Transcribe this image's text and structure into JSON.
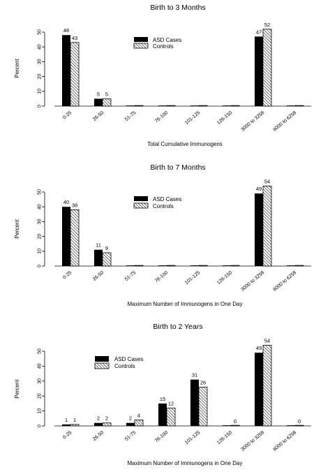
{
  "charts": [
    {
      "title": "Birth to 3 Months",
      "xlabel": "Total Cumulative Immunogens",
      "ylabel": "Percent"
    },
    {
      "title": "Birth to 7 Months",
      "xlabel": "Maximum Number of Immunogens in One Day",
      "ylabel": "Percent"
    },
    {
      "title": "Birth to 2 Years",
      "xlabel": "Maximum Number of Immunogens in One Day",
      "ylabel": "Percent"
    }
  ],
  "chart_data": [
    {
      "type": "bar",
      "title": "Birth to 3 Months",
      "xlabel": "Total Cumulative Immunogens",
      "ylabel": "Percent",
      "ylim": [
        0,
        50
      ],
      "yticks": [
        0,
        10,
        20,
        30,
        40,
        50
      ],
      "grid": false,
      "legend": "top-center",
      "categories": [
        "0-25",
        "26-50",
        "51-75",
        "76-100",
        "101-125",
        "126-150",
        "3000 to 3258",
        "6000 to 6258"
      ],
      "series": [
        {
          "name": "ASD Cases",
          "fill": "solid",
          "values": [
            48,
            5,
            0,
            0,
            0,
            0,
            47,
            0
          ]
        },
        {
          "name": "Controls",
          "fill": "hatched",
          "values": [
            43,
            5,
            0,
            0,
            0,
            0,
            52,
            0
          ]
        }
      ],
      "data_labels": {
        "ASD Cases": [
          "48",
          "5",
          "",
          "",
          "",
          "",
          "47",
          ""
        ],
        "Controls": [
          "43",
          "5",
          "",
          "",
          "",
          "",
          "52",
          ""
        ]
      }
    },
    {
      "type": "bar",
      "title": "Birth to 7 Months",
      "xlabel": "Maximum Number of Immunogens in One Day",
      "ylabel": "Percent",
      "ylim": [
        0,
        50
      ],
      "yticks": [
        0,
        10,
        20,
        30,
        40,
        50
      ],
      "grid": false,
      "legend": "top-center",
      "categories": [
        "0-25",
        "26-50",
        "51-75",
        "76-100",
        "101-125",
        "126-150",
        "3000 to 3258",
        "6000 to 6258"
      ],
      "series": [
        {
          "name": "ASD Cases",
          "fill": "solid",
          "values": [
            40,
            11,
            0,
            0,
            0,
            0,
            49,
            0
          ]
        },
        {
          "name": "Controls",
          "fill": "hatched",
          "values": [
            38,
            9,
            0,
            0,
            0,
            0,
            54,
            0
          ]
        }
      ],
      "data_labels": {
        "ASD Cases": [
          "40",
          "11",
          "",
          "",
          "",
          "",
          "49",
          ""
        ],
        "Controls": [
          "38",
          "9",
          "",
          "",
          "",
          "",
          "54",
          ""
        ]
      }
    },
    {
      "type": "bar",
      "title": "Birth to 2 Years",
      "xlabel": "Maximum Number of Immunogens in One Day",
      "ylabel": "Percent",
      "ylim": [
        0,
        50
      ],
      "yticks": [
        0,
        10,
        20,
        30,
        40,
        50
      ],
      "grid": false,
      "legend": "top-left",
      "categories": [
        "0-25",
        "26-50",
        "51-75",
        "76-100",
        "101-125",
        "126-150",
        "3000 to 3258",
        "6000 to 6258"
      ],
      "series": [
        {
          "name": "ASD Cases",
          "fill": "solid",
          "values": [
            1,
            2,
            2,
            15,
            31,
            0,
            49,
            0
          ]
        },
        {
          "name": "Controls",
          "fill": "hatched",
          "values": [
            1,
            2,
            4,
            12,
            26,
            0,
            54,
            0
          ]
        }
      ],
      "data_labels": {
        "ASD Cases": [
          "1",
          "2",
          "2",
          "15",
          "31",
          "",
          "49",
          ""
        ],
        "Controls": [
          "1",
          "2",
          "4",
          "12",
          "26",
          "0",
          "54",
          "0"
        ]
      }
    }
  ]
}
